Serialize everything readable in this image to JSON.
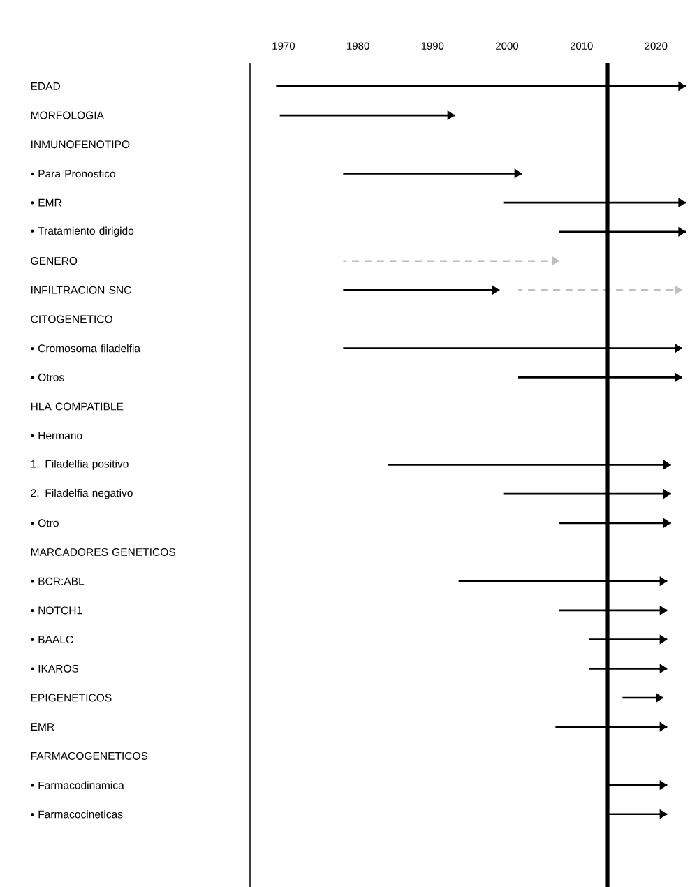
{
  "chart_data": {
    "type": "bar",
    "orientation": "horizontal",
    "categories": [
      "EDAD",
      "MORFOLOGIA",
      "INMUNOFENOTIPO",
      "• Para Pronostico",
      "• EMR",
      "• Tratamiento dirigido",
      "GENERO",
      "INFILTRACION SNC",
      "CITOGENETICO",
      "• Cromosoma filadelfia",
      "• Otros",
      "HLA COMPATIBLE",
      "• Hermano",
      "1. Filadelfia positivo",
      "2. Filadelfia negativo",
      "• Otro",
      "MARCADORES GENETICOS",
      "• BCR:ABL",
      "• NOTCH1",
      "• BAALC",
      "• IKAROS",
      "EPIGENETICOS",
      "EMR",
      "FARMACOGENETICOS",
      "• Farmacodinamica",
      "• Farmacocineticas"
    ],
    "series": [
      {
        "color": "#000000",
        "line_style": "solid",
        "base": [
          1969,
          1969.5,
          null,
          1978,
          1999.5,
          2007,
          null,
          1978,
          null,
          1978,
          2001.5,
          null,
          null,
          1984,
          1999.5,
          2007,
          null,
          1993.5,
          2007,
          2011,
          2011,
          2015.5,
          2006.5,
          null,
          2013.5,
          2013.5
        ],
        "values": [
          55,
          23.5,
          null,
          24,
          24.5,
          17,
          null,
          21,
          null,
          45.5,
          22,
          null,
          null,
          38,
          22.5,
          15,
          null,
          28,
          14.5,
          10.5,
          10.5,
          5.5,
          15,
          null,
          8,
          8
        ]
      },
      {
        "color": "#bfbfbf",
        "line_style": "dashed",
        "base": [
          null,
          null,
          null,
          null,
          null,
          null,
          1978,
          2001.5,
          null,
          null,
          null,
          null,
          null,
          null,
          null,
          null,
          null,
          null,
          null,
          null,
          null,
          null,
          null,
          null,
          null,
          null
        ],
        "values": [
          null,
          null,
          null,
          null,
          null,
          null,
          29,
          22,
          null,
          null,
          null,
          null,
          null,
          null,
          null,
          null,
          null,
          null,
          null,
          null,
          null,
          null,
          null,
          null,
          null,
          null
        ]
      }
    ],
    "xlim": [
      1965.5,
      2024
    ],
    "xticks": [
      1970,
      1980,
      1990,
      2000,
      2010,
      2020
    ],
    "ref_lines": [
      {
        "axis": "x",
        "value": 2013.5,
        "color": "#000000"
      }
    ]
  }
}
